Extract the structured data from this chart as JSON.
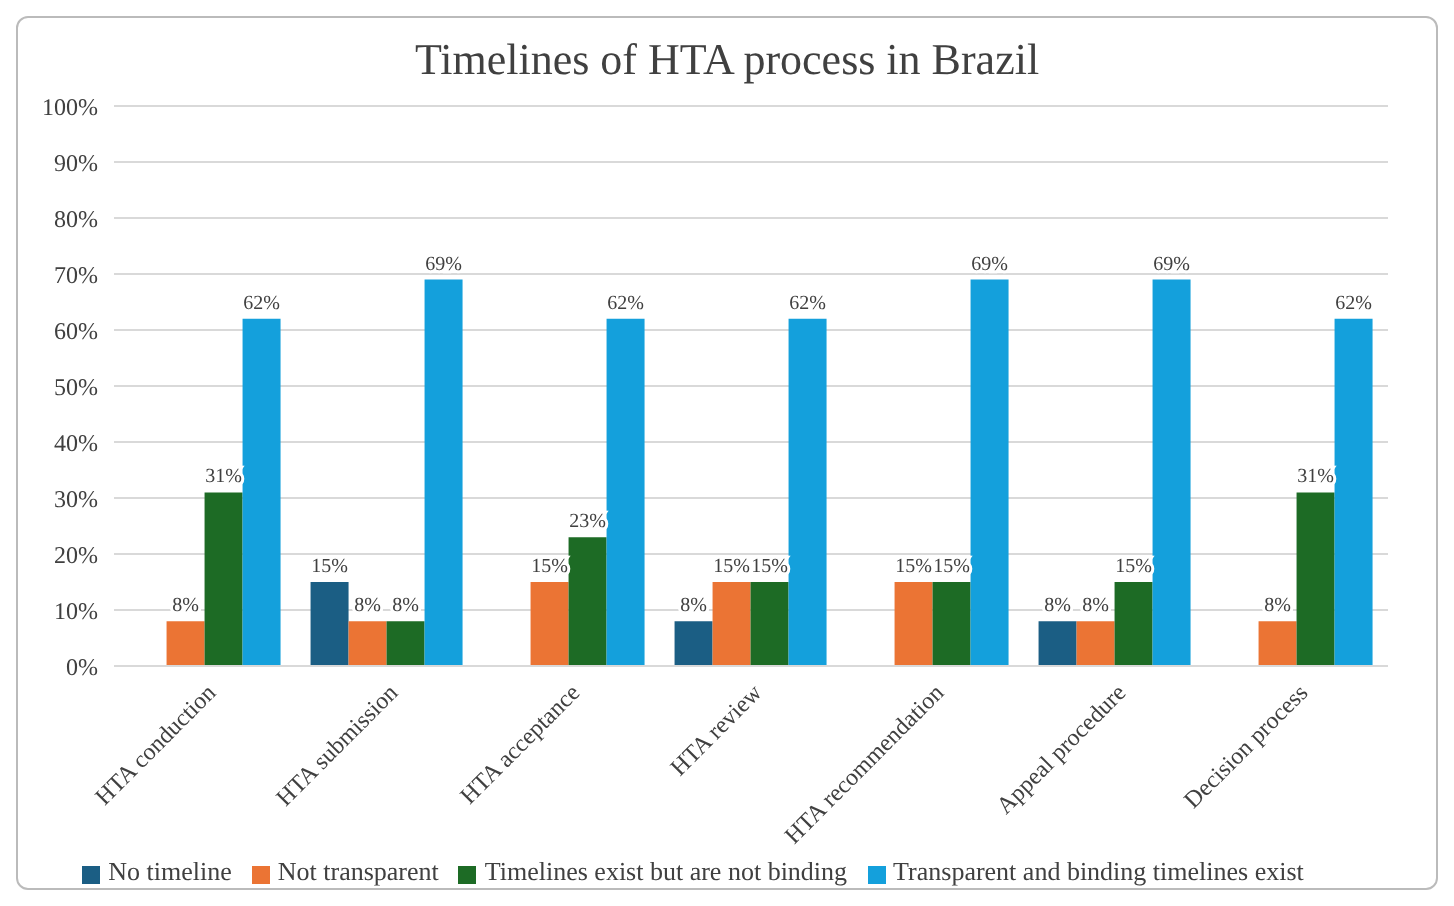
{
  "chart_data": {
    "type": "bar",
    "title": "Timelines of HTA process in Brazil",
    "categories": [
      "HTA conduction",
      "HTA submission",
      "HTA acceptance",
      "HTA review",
      "HTA recommendation",
      "Appeal procedure",
      "Decision process"
    ],
    "series": [
      {
        "name": "No timeline",
        "color": "#1b5e84",
        "values": [
          null,
          15,
          null,
          8,
          null,
          8,
          null
        ],
        "value_labels": [
          null,
          "15%",
          null,
          "8%",
          null,
          "8%",
          null
        ]
      },
      {
        "name": "Not transparent",
        "color": "#eb7434",
        "values": [
          8,
          8,
          15,
          15,
          15,
          8,
          8
        ],
        "value_labels": [
          "8%",
          "8%",
          "15%",
          "15%",
          "15%",
          "8%",
          "8%"
        ]
      },
      {
        "name": "Timelines exist but are not binding",
        "color": "#1d6b25",
        "values": [
          31,
          8,
          23,
          15,
          15,
          15,
          31
        ],
        "value_labels": [
          "31%",
          "8%",
          "23%",
          "15%",
          "15%",
          "15%",
          "31%"
        ]
      },
      {
        "name": "Transparent and binding timelines exist",
        "color": "#14a0dc",
        "values": [
          62,
          69,
          62,
          62,
          69,
          69,
          62
        ],
        "value_labels": [
          "62%",
          "69%",
          "62%",
          "62%",
          "69%",
          "69%",
          "62%"
        ]
      }
    ],
    "ylim": [
      0,
      100
    ],
    "yticks": [
      {
        "value": 0,
        "label": "0%"
      },
      {
        "value": 10,
        "label": "10%"
      },
      {
        "value": 20,
        "label": "20%"
      },
      {
        "value": 30,
        "label": "30%"
      },
      {
        "value": 40,
        "label": "40%"
      },
      {
        "value": 50,
        "label": "50%"
      },
      {
        "value": 60,
        "label": "60%"
      },
      {
        "value": 70,
        "label": "70%"
      },
      {
        "value": 80,
        "label": "80%"
      },
      {
        "value": 90,
        "label": "90%"
      },
      {
        "value": 100,
        "label": "100%"
      }
    ],
    "grid": "y",
    "legend": "bottom"
  }
}
